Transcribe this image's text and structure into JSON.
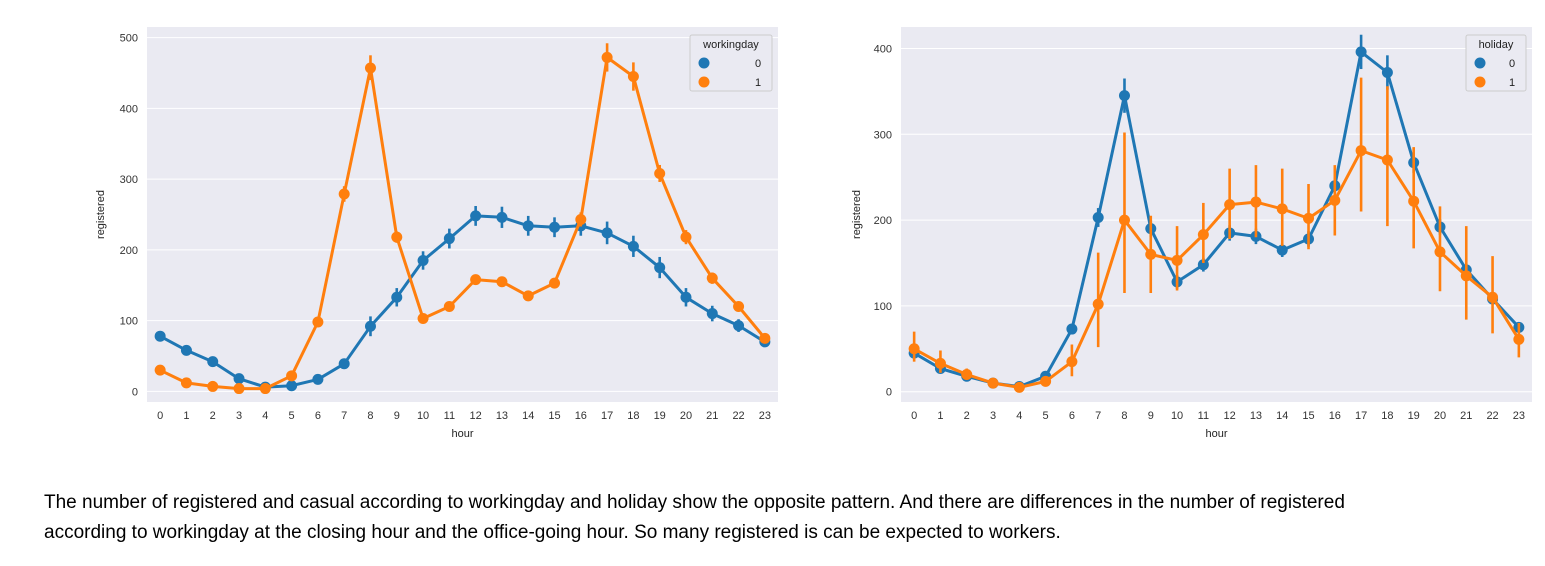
{
  "chart_data": [
    {
      "type": "line",
      "x": [
        0,
        1,
        2,
        3,
        4,
        5,
        6,
        7,
        8,
        9,
        10,
        11,
        12,
        13,
        14,
        15,
        16,
        17,
        18,
        19,
        20,
        21,
        22,
        23
      ],
      "xlabel": "hour",
      "ylabel": "registered",
      "ylim": [
        -15,
        515
      ],
      "yticks": [
        0,
        100,
        200,
        300,
        400,
        500
      ],
      "grid": true,
      "legend_title": "workingday",
      "legend_position": "top-right",
      "series": [
        {
          "name": "0",
          "color": "#1f77b4",
          "values": [
            78,
            58,
            42,
            18,
            6,
            8,
            17,
            39,
            92,
            133,
            185,
            216,
            248,
            246,
            234,
            232,
            234,
            224,
            205,
            175,
            133,
            110,
            93,
            70
          ],
          "ci": [
            [
              72,
              84
            ],
            [
              53,
              63
            ],
            [
              38,
              46
            ],
            [
              15,
              21
            ],
            [
              4,
              8
            ],
            [
              6,
              10
            ],
            [
              14,
              20
            ],
            [
              34,
              44
            ],
            [
              78,
              106
            ],
            [
              120,
              146
            ],
            [
              172,
              198
            ],
            [
              202,
              230
            ],
            [
              234,
              262
            ],
            [
              231,
              261
            ],
            [
              220,
              248
            ],
            [
              218,
              246
            ],
            [
              220,
              248
            ],
            [
              208,
              240
            ],
            [
              190,
              220
            ],
            [
              160,
              190
            ],
            [
              120,
              146
            ],
            [
              99,
              121
            ],
            [
              84,
              102
            ],
            [
              63,
              77
            ]
          ]
        },
        {
          "name": "1",
          "color": "#ff7f0e",
          "values": [
            30,
            12,
            7,
            4,
            4,
            22,
            98,
            279,
            457,
            218,
            103,
            120,
            158,
            155,
            135,
            153,
            243,
            472,
            445,
            308,
            218,
            160,
            120,
            75
          ],
          "ci": [
            [
              27,
              33
            ],
            [
              10,
              14
            ],
            [
              5,
              9
            ],
            [
              3,
              5
            ],
            [
              3,
              5
            ],
            [
              19,
              25
            ],
            [
              93,
              103
            ],
            [
              268,
              290
            ],
            [
              440,
              475
            ],
            [
              210,
              226
            ],
            [
              98,
              108
            ],
            [
              115,
              125
            ],
            [
              152,
              164
            ],
            [
              149,
              161
            ],
            [
              130,
              140
            ],
            [
              147,
              159
            ],
            [
              233,
              253
            ],
            [
              452,
              492
            ],
            [
              425,
              465
            ],
            [
              296,
              320
            ],
            [
              208,
              228
            ],
            [
              152,
              168
            ],
            [
              113,
              127
            ],
            [
              70,
              80
            ]
          ]
        }
      ]
    },
    {
      "type": "line",
      "x": [
        0,
        1,
        2,
        3,
        4,
        5,
        6,
        7,
        8,
        9,
        10,
        11,
        12,
        13,
        14,
        15,
        16,
        17,
        18,
        19,
        20,
        21,
        22,
        23
      ],
      "xlabel": "hour",
      "ylabel": "registered",
      "ylim": [
        -12,
        425
      ],
      "yticks": [
        0,
        100,
        200,
        300,
        400
      ],
      "grid": true,
      "legend_title": "holiday",
      "legend_position": "top-right",
      "series": [
        {
          "name": "0",
          "color": "#1f77b4",
          "values": [
            45,
            27,
            18,
            10,
            6,
            18,
            73,
            203,
            345,
            190,
            128,
            148,
            185,
            181,
            165,
            178,
            240,
            396,
            372,
            267,
            192,
            142,
            108,
            75
          ],
          "ci": [
            [
              40,
              50
            ],
            [
              24,
              30
            ],
            [
              16,
              20
            ],
            [
              8,
              12
            ],
            [
              5,
              7
            ],
            [
              15,
              21
            ],
            [
              68,
              78
            ],
            [
              192,
              214
            ],
            [
              325,
              365
            ],
            [
              180,
              200
            ],
            [
              120,
              136
            ],
            [
              140,
              156
            ],
            [
              176,
              194
            ],
            [
              172,
              190
            ],
            [
              157,
              173
            ],
            [
              169,
              187
            ],
            [
              230,
              250
            ],
            [
              376,
              416
            ],
            [
              352,
              392
            ],
            [
              255,
              279
            ],
            [
              183,
              201
            ],
            [
              135,
              149
            ],
            [
              102,
              114
            ],
            [
              70,
              80
            ]
          ]
        },
        {
          "name": "1",
          "color": "#ff7f0e",
          "values": [
            50,
            33,
            20,
            10,
            5,
            12,
            35,
            102,
            200,
            160,
            153,
            183,
            218,
            221,
            213,
            202,
            223,
            281,
            270,
            222,
            163,
            135,
            110,
            61
          ],
          "ci": [
            [
              35,
              70
            ],
            [
              22,
              48
            ],
            [
              14,
              27
            ],
            [
              7,
              13
            ],
            [
              3,
              7
            ],
            [
              6,
              18
            ],
            [
              18,
              55
            ],
            [
              52,
              162
            ],
            [
              115,
              302
            ],
            [
              115,
              205
            ],
            [
              118,
              193
            ],
            [
              150,
              220
            ],
            [
              178,
              260
            ],
            [
              180,
              264
            ],
            [
              170,
              260
            ],
            [
              166,
              242
            ],
            [
              182,
              264
            ],
            [
              210,
              366
            ],
            [
              193,
              356
            ],
            [
              167,
              285
            ],
            [
              117,
              216
            ],
            [
              84,
              193
            ],
            [
              68,
              158
            ],
            [
              40,
              80
            ]
          ]
        }
      ]
    }
  ],
  "caption": {
    "line1": "The number of registered and casual according to workingday and holiday show the opposite pattern. And there are differences in the number of registered",
    "line2": "according to workingday at the closing hour and the office-going hour. So many registered is can be expected to workers."
  }
}
